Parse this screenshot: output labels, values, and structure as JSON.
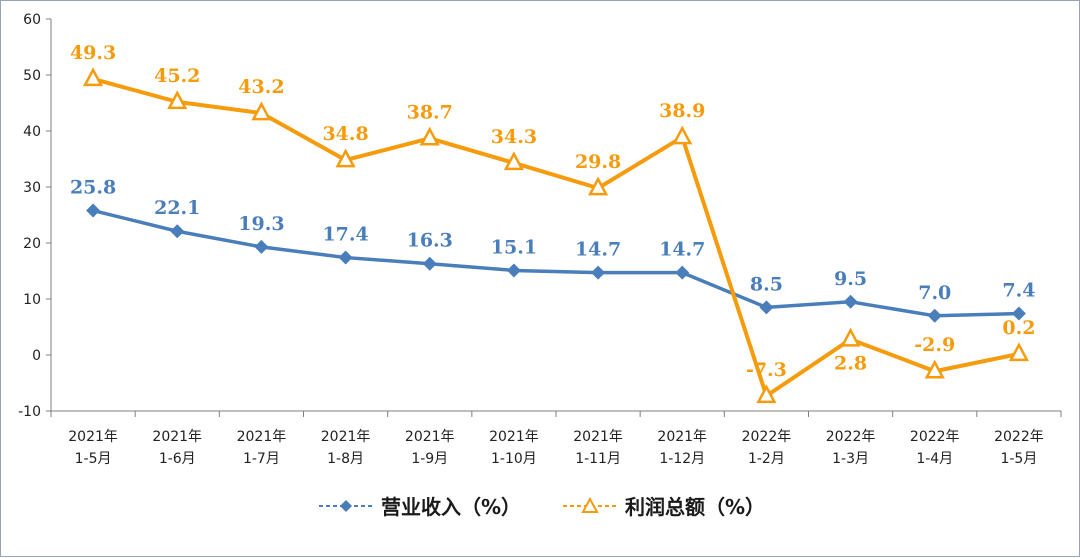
{
  "chart_data": {
    "type": "line",
    "categories": [
      [
        "2021年",
        "1-5月"
      ],
      [
        "2021年",
        "1-6月"
      ],
      [
        "2021年",
        "1-7月"
      ],
      [
        "2021年",
        "1-8月"
      ],
      [
        "2021年",
        "1-9月"
      ],
      [
        "2021年",
        "1-10月"
      ],
      [
        "2021年",
        "1-11月"
      ],
      [
        "2021年",
        "1-12月"
      ],
      [
        "2022年",
        "1-2月"
      ],
      [
        "2022年",
        "1-3月"
      ],
      [
        "2022年",
        "1-4月"
      ],
      [
        "2022年",
        "1-5月"
      ]
    ],
    "series": [
      {
        "name": "营业收入（%）",
        "marker": "diamond",
        "color": "#4a7ebb",
        "values": [
          25.8,
          22.1,
          19.3,
          17.4,
          16.3,
          15.1,
          14.7,
          14.7,
          8.5,
          9.5,
          7.0,
          7.4
        ],
        "labels": [
          "25.8",
          "22.1",
          "19.3",
          "17.4",
          "16.3",
          "15.1",
          "14.7",
          "14.7",
          "8.5",
          "9.5",
          "7.0",
          "7.4"
        ]
      },
      {
        "name": "利润总额（%）",
        "marker": "triangle",
        "color": "#f59b0c",
        "values": [
          49.3,
          45.2,
          43.2,
          34.8,
          38.7,
          34.3,
          29.8,
          38.9,
          -7.3,
          2.8,
          -2.9,
          0.2
        ],
        "labels": [
          "49.3",
          "45.2",
          "43.2",
          "34.8",
          "38.7",
          "34.3",
          "29.8",
          "38.9",
          "-7.3",
          "2.8",
          "-2.9",
          "0.2"
        ]
      }
    ],
    "ylim": [
      -10,
      60
    ],
    "yticks": [
      "60",
      "50",
      "40",
      "30",
      "20",
      "10",
      "0",
      "-10"
    ],
    "ytick_values": [
      60,
      50,
      40,
      30,
      20,
      10,
      0,
      -10
    ],
    "grid": false,
    "legend_position": "bottom"
  },
  "legend": {
    "items": [
      {
        "label": "营业收入（%）",
        "icon": "diamond-line-icon"
      },
      {
        "label": "利润总额（%）",
        "icon": "triangle-line-icon"
      }
    ]
  }
}
